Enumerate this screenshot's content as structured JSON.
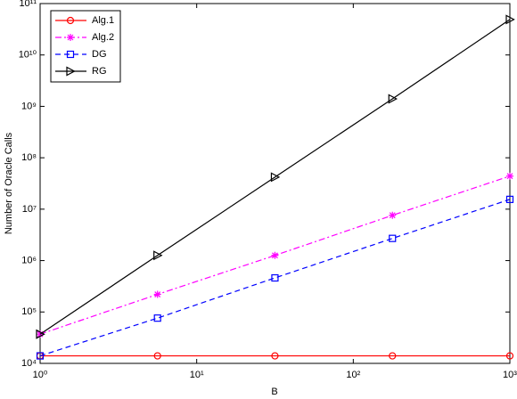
{
  "chart_data": {
    "type": "line",
    "xlabel": "B",
    "ylabel": "Number of Oracle Calls",
    "x": [
      1,
      5.62,
      31.6,
      177.8,
      1000
    ],
    "xscale": "log",
    "yscale": "log",
    "xlim": [
      1,
      1000
    ],
    "ylim": [
      10000,
      100000000000
    ],
    "xticks": [
      {
        "value": 1,
        "label": "10⁰"
      },
      {
        "value": 10,
        "label": "10¹"
      },
      {
        "value": 100,
        "label": "10²"
      },
      {
        "value": 1000,
        "label": "10³"
      }
    ],
    "yticks": [
      {
        "value": 10000,
        "label": "10⁴"
      },
      {
        "value": 100000,
        "label": "10⁵"
      },
      {
        "value": 1000000,
        "label": "10⁶"
      },
      {
        "value": 10000000,
        "label": "10⁷"
      },
      {
        "value": 100000000,
        "label": "10⁸"
      },
      {
        "value": 1000000000,
        "label": "10⁹"
      },
      {
        "value": 10000000000,
        "label": "10¹⁰"
      },
      {
        "value": 100000000000,
        "label": "10¹¹"
      }
    ],
    "legend": "upper-left",
    "series": [
      {
        "name": "Alg.1",
        "color": "#ff0000",
        "dash": "solid",
        "marker": "circle",
        "values": [
          14000,
          14000,
          14000,
          14000,
          14000
        ]
      },
      {
        "name": "Alg.2",
        "color": "#ff00ff",
        "dash": "dashdot",
        "marker": "asterisk",
        "values": [
          37000,
          220000,
          1260000,
          7600000,
          44000000
        ]
      },
      {
        "name": "DG",
        "color": "#0000ff",
        "dash": "dashed",
        "marker": "square",
        "values": [
          14000,
          76000,
          460000,
          2700000,
          15500000
        ]
      },
      {
        "name": "RG",
        "color": "#000000",
        "dash": "solid",
        "marker": "triangle-right",
        "values": [
          37000,
          1260000,
          42000000,
          1400000000,
          49000000000
        ]
      }
    ]
  }
}
